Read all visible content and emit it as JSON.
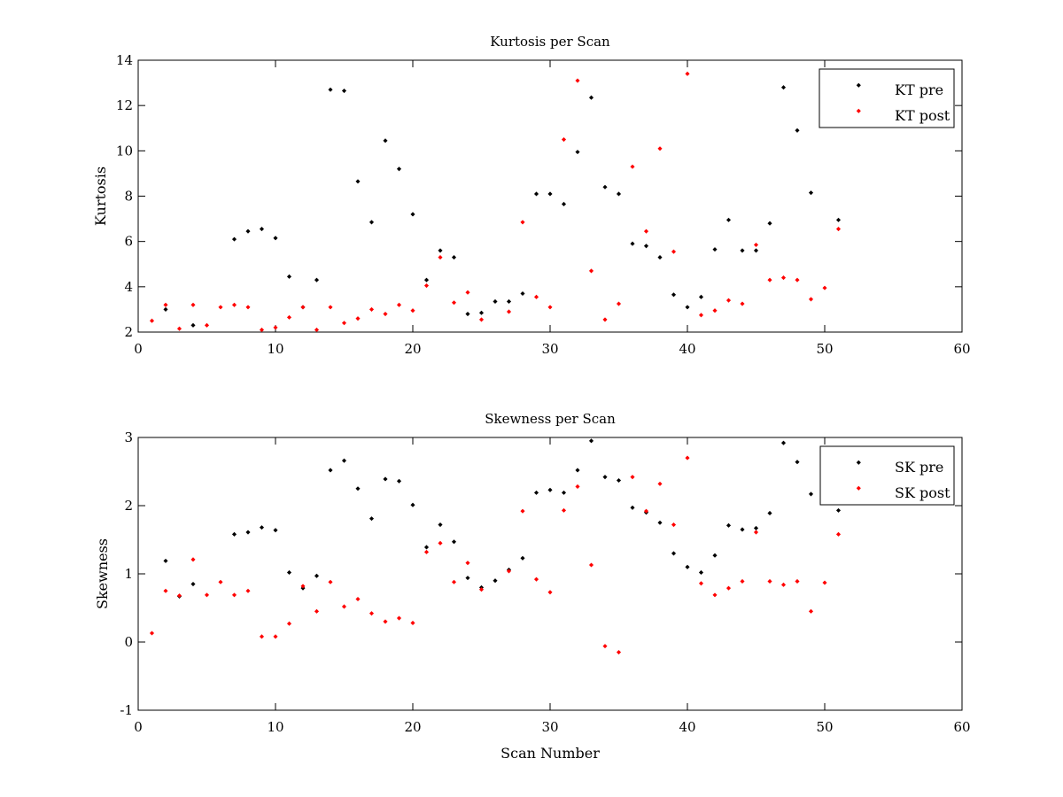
{
  "chart_data": [
    {
      "type": "scatter",
      "title": "Kurtosis per Scan",
      "xlabel": "",
      "ylabel": "Kurtosis",
      "xlim": [
        0,
        60
      ],
      "ylim": [
        2,
        14
      ],
      "xticks": [
        0,
        10,
        20,
        30,
        40,
        50,
        60
      ],
      "yticks": [
        2,
        4,
        6,
        8,
        10,
        12,
        14
      ],
      "grid": false,
      "legend_position": "top-right",
      "series": [
        {
          "name": "KT pre",
          "color": "#000000",
          "x": [
            2,
            4,
            7,
            8,
            9,
            10,
            11,
            12,
            13,
            14,
            15,
            16,
            17,
            18,
            19,
            20,
            21,
            22,
            23,
            24,
            25,
            26,
            27,
            28,
            29,
            30,
            31,
            32,
            33,
            34,
            35,
            36,
            37,
            38,
            39,
            40,
            41,
            42,
            43,
            44,
            45,
            46,
            47,
            48,
            49,
            51
          ],
          "y": [
            3.0,
            2.3,
            6.1,
            6.45,
            6.55,
            6.15,
            4.45,
            3.1,
            4.3,
            12.7,
            12.65,
            8.65,
            6.85,
            10.45,
            9.2,
            7.2,
            4.3,
            5.6,
            5.3,
            2.8,
            2.85,
            3.35,
            3.35,
            3.7,
            8.1,
            8.1,
            7.65,
            9.95,
            12.35,
            8.4,
            8.1,
            5.9,
            5.8,
            5.3,
            3.65,
            3.1,
            3.55,
            5.65,
            6.95,
            5.6,
            5.6,
            6.8,
            12.8,
            10.9,
            8.15,
            6.95
          ]
        },
        {
          "name": "KT post",
          "color": "#ff0000",
          "x": [
            1,
            2,
            3,
            4,
            5,
            6,
            7,
            8,
            9,
            10,
            11,
            12,
            13,
            14,
            15,
            16,
            17,
            18,
            19,
            20,
            21,
            22,
            23,
            24,
            25,
            27,
            28,
            29,
            30,
            31,
            32,
            33,
            34,
            35,
            36,
            37,
            38,
            39,
            40,
            41,
            42,
            43,
            44,
            45,
            46,
            47,
            48,
            49,
            50,
            51
          ],
          "y": [
            2.5,
            3.2,
            2.15,
            3.2,
            2.3,
            3.1,
            3.2,
            3.1,
            2.1,
            2.2,
            2.65,
            3.1,
            2.1,
            3.1,
            2.4,
            2.6,
            3.0,
            2.8,
            3.2,
            2.95,
            4.05,
            5.3,
            3.3,
            3.75,
            2.55,
            2.9,
            6.85,
            3.55,
            3.1,
            10.5,
            13.1,
            4.7,
            2.55,
            3.25,
            9.3,
            6.45,
            10.1,
            5.55,
            13.4,
            2.75,
            2.95,
            3.4,
            3.25,
            5.85,
            4.3,
            4.4,
            4.3,
            3.45,
            3.95,
            6.55
          ]
        }
      ]
    },
    {
      "type": "scatter",
      "title": "Skewness per Scan",
      "xlabel": "Scan Number",
      "ylabel": "Skewness",
      "xlim": [
        0,
        60
      ],
      "ylim": [
        -1,
        3
      ],
      "xticks": [
        0,
        10,
        20,
        30,
        40,
        50,
        60
      ],
      "yticks": [
        -1,
        0,
        1,
        2,
        3
      ],
      "grid": false,
      "legend_position": "top-right",
      "series": [
        {
          "name": "SK pre",
          "color": "#000000",
          "x": [
            2,
            3,
            4,
            7,
            8,
            9,
            10,
            11,
            12,
            13,
            14,
            15,
            16,
            17,
            18,
            19,
            20,
            21,
            22,
            23,
            24,
            25,
            26,
            27,
            28,
            29,
            30,
            31,
            32,
            33,
            34,
            35,
            36,
            37,
            38,
            39,
            40,
            41,
            42,
            43,
            44,
            45,
            46,
            47,
            48,
            49,
            51
          ],
          "y": [
            1.19,
            0.67,
            0.85,
            1.58,
            1.61,
            1.68,
            1.64,
            1.02,
            0.79,
            0.97,
            2.52,
            2.66,
            2.25,
            1.81,
            2.39,
            2.36,
            2.01,
            1.39,
            1.72,
            1.47,
            0.94,
            0.8,
            0.9,
            1.06,
            1.23,
            2.19,
            2.23,
            2.19,
            2.52,
            2.95,
            2.42,
            2.37,
            1.97,
            1.9,
            1.75,
            1.3,
            1.1,
            1.02,
            1.27,
            1.71,
            1.65,
            1.67,
            1.89,
            2.92,
            2.64,
            2.17,
            1.93
          ]
        },
        {
          "name": "SK post",
          "color": "#ff0000",
          "x": [
            1,
            2,
            3,
            4,
            5,
            6,
            7,
            8,
            9,
            10,
            11,
            12,
            13,
            14,
            15,
            16,
            17,
            18,
            19,
            20,
            21,
            22,
            23,
            24,
            25,
            27,
            28,
            29,
            30,
            31,
            32,
            33,
            34,
            35,
            36,
            37,
            38,
            39,
            40,
            41,
            42,
            43,
            44,
            45,
            46,
            47,
            48,
            49,
            50,
            51
          ],
          "y": [
            0.13,
            0.75,
            0.68,
            1.21,
            0.69,
            0.88,
            0.69,
            0.75,
            0.08,
            0.08,
            0.27,
            0.82,
            0.45,
            0.88,
            0.52,
            0.63,
            0.42,
            0.3,
            0.35,
            0.28,
            1.32,
            1.45,
            0.88,
            1.16,
            0.77,
            1.04,
            1.92,
            0.92,
            0.73,
            1.93,
            2.28,
            1.13,
            -0.06,
            -0.15,
            2.42,
            1.92,
            2.32,
            1.72,
            2.7,
            0.86,
            0.69,
            0.79,
            0.89,
            1.61,
            0.89,
            0.84,
            0.89,
            0.45,
            0.87,
            1.58
          ]
        }
      ]
    }
  ]
}
